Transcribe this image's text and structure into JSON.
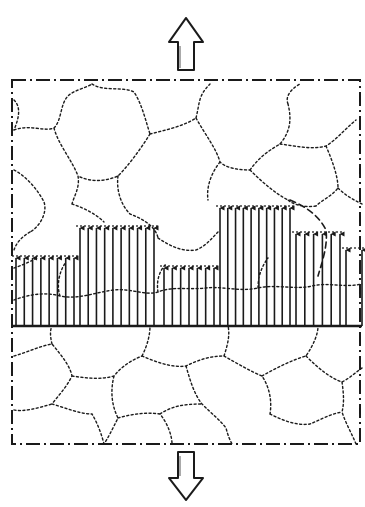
{
  "diagram": {
    "palette": {
      "stroke": "#1a1a1a",
      "background": "#ffffff"
    },
    "elements": {
      "top_arrow": "up-arrow-icon",
      "bottom_arrow": "down-arrow-icon",
      "specimen_frame": "dash-dot-rectangle",
      "grains": "dotted-grain-boundaries",
      "stress_arrows": "vertical-stress-arrows",
      "crack_plane": "horizontal-section-line"
    }
  }
}
